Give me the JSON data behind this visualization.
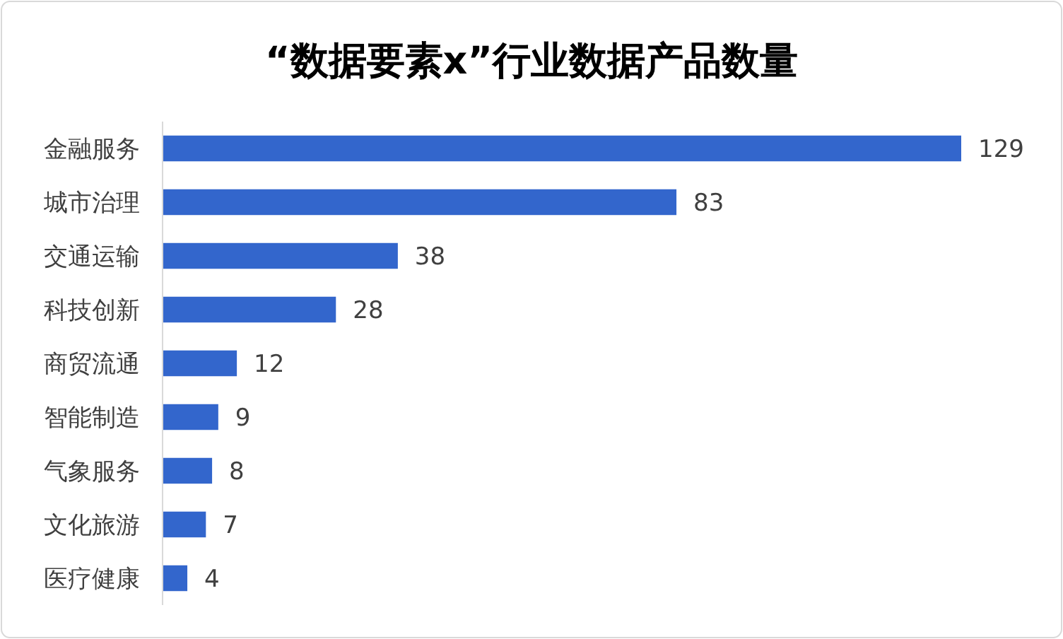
{
  "chart_data": {
    "type": "bar",
    "orientation": "horizontal",
    "title": "“数据要素x”行业数据产品数量",
    "categories": [
      "金融服务",
      "城市治理",
      "交通运输",
      "科技创新",
      "商贸流通",
      "智能制造",
      "气象服务",
      "文化旅游",
      "医疗健康"
    ],
    "values": [
      129,
      83,
      38,
      28,
      12,
      9,
      8,
      7,
      4
    ],
    "color": "#3366cc",
    "data_labels": true
  }
}
